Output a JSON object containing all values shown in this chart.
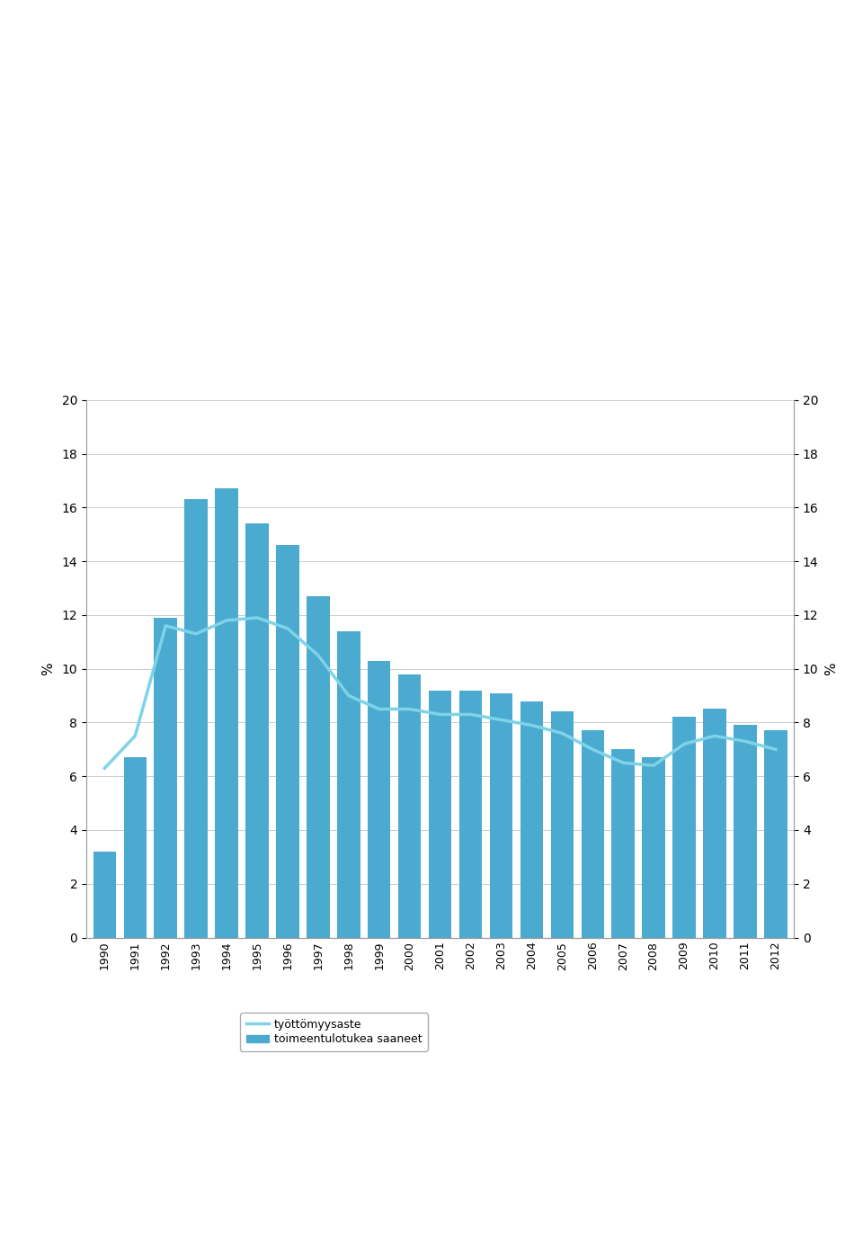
{
  "years": [
    1990,
    1991,
    1992,
    1993,
    1994,
    1995,
    1996,
    1997,
    1998,
    1999,
    2000,
    2001,
    2002,
    2003,
    2004,
    2005,
    2006,
    2007,
    2008,
    2009,
    2010,
    2011,
    2012
  ],
  "bars": [
    3.2,
    6.7,
    11.9,
    16.3,
    16.7,
    15.4,
    14.6,
    12.7,
    11.4,
    10.3,
    9.8,
    9.2,
    9.2,
    9.1,
    8.8,
    8.4,
    7.7,
    7.0,
    6.7,
    8.2,
    8.5,
    7.9,
    7.7
  ],
  "line": [
    6.3,
    7.5,
    11.6,
    11.3,
    11.8,
    11.9,
    11.5,
    10.5,
    9.0,
    8.5,
    8.5,
    8.3,
    8.3,
    8.1,
    7.9,
    7.6,
    7.0,
    6.5,
    6.4,
    7.2,
    7.5,
    7.3,
    7.0
  ],
  "bar_color": "#4baacf",
  "line_color": "#7ed3e8",
  "ylim": [
    0,
    20
  ],
  "yticks": [
    0,
    2,
    4,
    6,
    8,
    10,
    12,
    14,
    16,
    18,
    20
  ],
  "ylabel_left": "%",
  "ylabel_right": "%",
  "legend_bar": "toimeentulotukea saaneet",
  "legend_line": "työttömyysaste",
  "background_color": "#ffffff",
  "grid_color": "#cccccc"
}
